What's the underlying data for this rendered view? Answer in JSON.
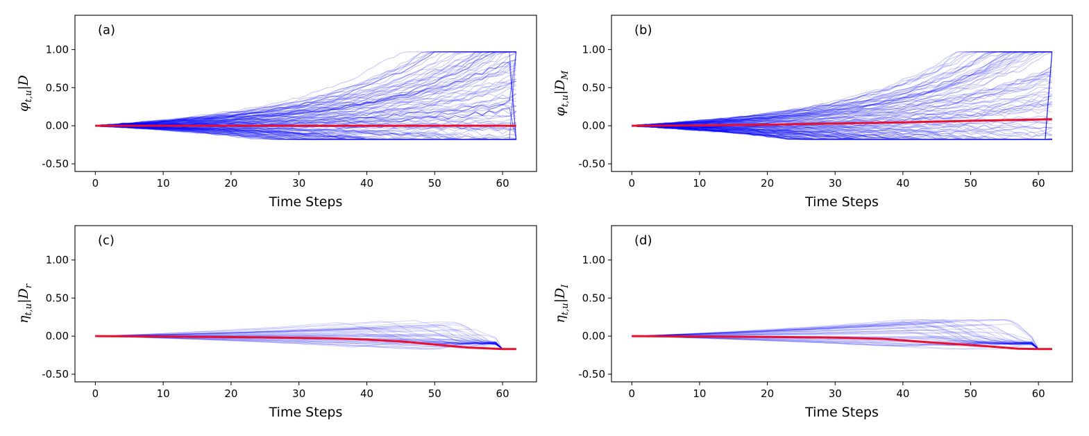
{
  "figure": {
    "xlabel_common": "Time Steps"
  },
  "chart_data": [
    {
      "type": "line",
      "panel_label": "(a)",
      "ylabel": {
        "main": "φ",
        "sub": "t,u",
        "cond": "|D",
        "cond_sub": ""
      },
      "xlabel": "Time Steps",
      "xlim": [
        -3,
        65
      ],
      "ylim": [
        -0.6,
        1.45
      ],
      "xticks": [
        0,
        10,
        20,
        30,
        40,
        50,
        60
      ],
      "yticks": [
        -0.5,
        0.0,
        0.5,
        1.0
      ],
      "ytick_labels": [
        "-0.50",
        "0.00",
        "0.50",
        "1.00"
      ],
      "xtick_labels": [
        "0",
        "10",
        "20",
        "30",
        "40",
        "50",
        "60"
      ],
      "mean_series": {
        "name": "mean",
        "color": "#e8112d",
        "x": [
          0,
          10,
          20,
          30,
          40,
          50,
          62
        ],
        "y": [
          0.0,
          0.0,
          0.0,
          0.0,
          0.0,
          0.0,
          0.0
        ]
      },
      "samples": {
        "color": "#0000ff",
        "count": 120,
        "steps": 62,
        "kind": "growth",
        "min": -0.18,
        "max": 0.97
      }
    },
    {
      "type": "line",
      "panel_label": "(b)",
      "ylabel": {
        "main": "φ",
        "sub": "t,u",
        "cond": "|D",
        "cond_sub": "M"
      },
      "xlabel": "Time Steps",
      "xlim": [
        -3,
        65
      ],
      "ylim": [
        -0.6,
        1.45
      ],
      "xticks": [
        0,
        10,
        20,
        30,
        40,
        50,
        60
      ],
      "yticks": [
        -0.5,
        0.0,
        0.5,
        1.0
      ],
      "ytick_labels": [
        "-0.50",
        "0.00",
        "0.50",
        "1.00"
      ],
      "xtick_labels": [
        "0",
        "10",
        "20",
        "30",
        "40",
        "50",
        "60"
      ],
      "mean_series": {
        "name": "mean",
        "color": "#e8112d",
        "x": [
          0,
          10,
          20,
          30,
          40,
          50,
          62
        ],
        "y": [
          0.0,
          0.005,
          0.015,
          0.03,
          0.045,
          0.065,
          0.085
        ]
      },
      "samples": {
        "color": "#0000ff",
        "count": 120,
        "steps": 62,
        "kind": "growth",
        "min": -0.18,
        "max": 0.97
      }
    },
    {
      "type": "line",
      "panel_label": "(c)",
      "ylabel": {
        "main": "η",
        "sub": "t,u",
        "cond": "|D",
        "cond_sub": "r"
      },
      "xlabel": "Time Steps",
      "xlim": [
        -3,
        65
      ],
      "ylim": [
        -0.6,
        1.45
      ],
      "xticks": [
        0,
        10,
        20,
        30,
        40,
        50,
        60
      ],
      "yticks": [
        -0.5,
        0.0,
        0.5,
        1.0
      ],
      "ytick_labels": [
        "-0.50",
        "0.00",
        "0.50",
        "1.00"
      ],
      "xtick_labels": [
        "0",
        "10",
        "20",
        "30",
        "40",
        "50",
        "60"
      ],
      "mean_series": {
        "name": "mean",
        "color": "#e8112d",
        "x": [
          0,
          10,
          20,
          30,
          35,
          40,
          45,
          50,
          55,
          60,
          62
        ],
        "y": [
          0.0,
          -0.005,
          -0.012,
          -0.022,
          -0.03,
          -0.045,
          -0.07,
          -0.11,
          -0.15,
          -0.17,
          -0.17
        ]
      },
      "samples": {
        "color": "#0000ff",
        "count": 45,
        "steps": 62,
        "kind": "decay",
        "min": -0.17,
        "max": 0.25
      }
    },
    {
      "type": "line",
      "panel_label": "(d)",
      "ylabel": {
        "main": "η",
        "sub": "t,u",
        "cond": "|D",
        "cond_sub": "I"
      },
      "xlabel": "Time Steps",
      "xlim": [
        -3,
        65
      ],
      "ylim": [
        -0.6,
        1.45
      ],
      "xticks": [
        0,
        10,
        20,
        30,
        40,
        50,
        60
      ],
      "yticks": [
        -0.5,
        0.0,
        0.5,
        1.0
      ],
      "ytick_labels": [
        "-0.50",
        "0.00",
        "0.50",
        "1.00"
      ],
      "xtick_labels": [
        "0",
        "10",
        "20",
        "30",
        "40",
        "50",
        "60"
      ],
      "mean_series": {
        "name": "mean",
        "color": "#e8112d",
        "x": [
          0,
          10,
          20,
          30,
          37,
          42,
          47,
          52,
          57,
          60,
          62
        ],
        "y": [
          0.0,
          -0.005,
          -0.01,
          -0.02,
          -0.035,
          -0.07,
          -0.1,
          -0.13,
          -0.165,
          -0.17,
          -0.17
        ]
      },
      "samples": {
        "color": "#0000ff",
        "count": 45,
        "steps": 62,
        "kind": "decay",
        "min": -0.17,
        "max": 0.22
      }
    }
  ]
}
